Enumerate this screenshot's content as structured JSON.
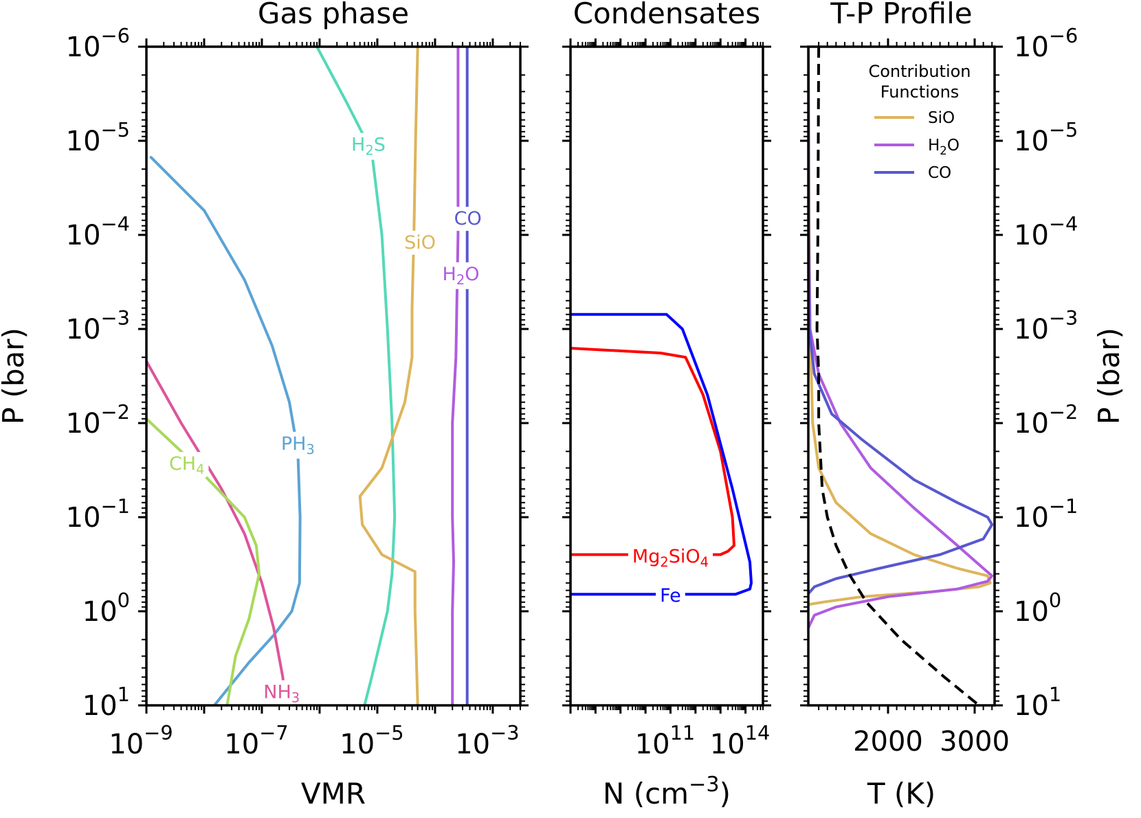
{
  "chart_data": [
    {
      "id": "gas",
      "type": "line",
      "title": "Gas phase",
      "xlabel": "VMR",
      "ylabel": "P (bar)",
      "xscale": "log",
      "yscale": "log",
      "xlim": [
        1e-09,
        0.003
      ],
      "ylim": [
        10,
        1e-06
      ],
      "x_ticks": [
        {
          "base": "10",
          "exp": "−9",
          "value": 1e-09
        },
        {
          "base": "10",
          "exp": "−7",
          "value": 1e-07
        },
        {
          "base": "10",
          "exp": "−5",
          "value": 1e-05
        },
        {
          "base": "10",
          "exp": "−3",
          "value": 0.001
        }
      ],
      "y_ticks": [
        {
          "base": "10",
          "exp": "−6",
          "value": 1e-06
        },
        {
          "base": "10",
          "exp": "−5",
          "value": 1e-05
        },
        {
          "base": "10",
          "exp": "−4",
          "value": 0.0001
        },
        {
          "base": "10",
          "exp": "−3",
          "value": 0.001
        },
        {
          "base": "10",
          "exp": "−2",
          "value": 0.01
        },
        {
          "base": "10",
          "exp": "−1",
          "value": 0.1
        },
        {
          "base": "10",
          "exp": "0",
          "value": 1
        },
        {
          "base": "10",
          "exp": "1",
          "value": 10
        }
      ],
      "series": [
        {
          "key": "PH3",
          "label": "PH",
          "label_sub": "3",
          "label_tail": "",
          "color": "#5ba3d5",
          "label_at": [
            4.2e-07,
            0.0165
          ],
          "points": [
            [
              1.2e-09,
              1.5e-05
            ],
            [
              1e-08,
              5.5e-05
            ],
            [
              5e-08,
              0.0003
            ],
            [
              1.5e-07,
              0.0015
            ],
            [
              3e-07,
              0.006
            ],
            [
              4.2e-07,
              0.02
            ],
            [
              4.6e-07,
              0.1
            ],
            [
              4.5e-07,
              0.5
            ],
            [
              3.3e-07,
              1.0
            ],
            [
              1.6e-07,
              1.8
            ],
            [
              6e-08,
              3.5
            ],
            [
              1.5e-08,
              10
            ]
          ]
        },
        {
          "key": "NH3",
          "label": "NH",
          "label_sub": "3",
          "label_tail": "",
          "color": "#dd559c",
          "label_at": [
            2.2e-07,
            7.2
          ],
          "points": [
            [
              1e-09,
              0.0022
            ],
            [
              4e-09,
              0.01
            ],
            [
              2e-08,
              0.05
            ],
            [
              5e-08,
              0.15
            ],
            [
              1e-07,
              0.5
            ],
            [
              1.6e-07,
              1.5
            ],
            [
              2.3e-07,
              5
            ],
            [
              2.6e-07,
              10
            ]
          ]
        },
        {
          "key": "CH4",
          "label": "CH",
          "label_sub": "4",
          "label_tail": "",
          "color": "#a8d95a",
          "label_at": [
            5e-09,
            0.027
          ],
          "points": [
            [
              1e-09,
              0.009
            ],
            [
              4e-09,
              0.02
            ],
            [
              1.7e-08,
              0.05
            ],
            [
              5e-08,
              0.1
            ],
            [
              8e-08,
              0.2
            ],
            [
              9e-08,
              0.4
            ],
            [
              6e-08,
              1.2
            ],
            [
              3.5e-08,
              3
            ],
            [
              2.5e-08,
              10
            ]
          ]
        },
        {
          "key": "H2S",
          "label": "H",
          "label_sub": "2",
          "label_tail": "S",
          "color": "#55d9b8",
          "label_at": [
            7e-06,
            1.1e-05
          ],
          "points": [
            [
              9e-07,
              1e-06
            ],
            [
              3e-06,
              4e-06
            ],
            [
              8e-06,
              1.3e-05
            ],
            [
              1.2e-05,
              0.0001
            ],
            [
              1.5e-05,
              0.001
            ],
            [
              1.8e-05,
              0.01
            ],
            [
              2e-05,
              0.1
            ],
            [
              1.8e-05,
              0.4
            ],
            [
              1.5e-05,
              1
            ],
            [
              8e-06,
              5
            ],
            [
              6e-06,
              10
            ]
          ]
        },
        {
          "key": "SiO",
          "label": "SiO",
          "label_sub": "",
          "label_tail": "",
          "color": "#ddb55b",
          "label_at": [
            5.5e-05,
            0.00012
          ],
          "points": [
            [
              5e-05,
              1e-06
            ],
            [
              4.6e-05,
              1e-05
            ],
            [
              4.3e-05,
              0.0001
            ],
            [
              4e-05,
              0.0006
            ],
            [
              4e-05,
              0.002
            ],
            [
              3e-05,
              0.006
            ],
            [
              1.2e-05,
              0.03
            ],
            [
              5e-06,
              0.06
            ],
            [
              5.5e-06,
              0.12
            ],
            [
              1.2e-05,
              0.25
            ],
            [
              4.5e-05,
              0.38
            ],
            [
              4.5e-05,
              1
            ],
            [
              5e-05,
              10
            ]
          ]
        },
        {
          "key": "H2O",
          "label": "H",
          "label_sub": "2",
          "label_tail": "O",
          "color": "#b05ce0",
          "label_at": [
            0.00028,
            0.00026
          ],
          "points": [
            [
              0.00025,
              1e-06
            ],
            [
              0.00025,
              0.0001
            ],
            [
              0.00023,
              0.002
            ],
            [
              0.0002,
              0.01
            ],
            [
              0.0002,
              0.1
            ],
            [
              0.00021,
              0.3
            ],
            [
              0.0002,
              1
            ],
            [
              0.0002,
              10
            ]
          ]
        },
        {
          "key": "CO",
          "label": "CO",
          "label_sub": "",
          "label_tail": "",
          "color": "#5858d0",
          "label_at": [
            0.00037,
            6.7e-05
          ],
          "points": [
            [
              0.00036,
              1e-06
            ],
            [
              0.00036,
              10
            ]
          ]
        }
      ]
    },
    {
      "id": "cond",
      "type": "line",
      "title": "Condensates",
      "xlabel": "N (cm",
      "xlabel_sup": "−3",
      "xlabel_tail": ")",
      "xscale": "log",
      "yscale": "log",
      "xlim": [
        10000000,
        500000000000000
      ],
      "ylim": [
        10,
        1e-06
      ],
      "x_ticks": [
        {
          "base": "10",
          "exp": "11",
          "value": 100000000000
        },
        {
          "base": "10",
          "exp": "14",
          "value": 100000000000000
        }
      ],
      "series": [
        {
          "key": "Mg2SiO4",
          "label": "Mg",
          "label_sub": "2",
          "label_tail": "SiO",
          "label_sub2": "4",
          "color": "#ff0000",
          "label_at": [
            100000000000,
            0.26
          ],
          "points": [
            [
              10000000,
              0.25
            ],
            [
              30000000,
              0.25
            ],
            [
              10000000000000,
              0.25
            ],
            [
              20000000000000,
              0.23
            ],
            [
              35000000000000,
              0.2
            ],
            [
              30000000000000,
              0.1
            ],
            [
              10000000000000,
              0.02
            ],
            [
              2000000000000,
              0.005
            ],
            [
              400000000000,
              0.002
            ],
            [
              40000000000,
              0.0018
            ],
            [
              10000000,
              0.0016
            ]
          ]
        },
        {
          "key": "Fe",
          "label": "Fe",
          "label_sub": "",
          "label_tail": "",
          "color": "#0000ff",
          "label_at": [
            100000000000,
            0.68
          ],
          "points": [
            [
              10000000,
              0.66
            ],
            [
              40000000000000,
              0.66
            ],
            [
              150000000000000,
              0.58
            ],
            [
              170000000000000,
              0.5
            ],
            [
              150000000000000,
              0.3
            ],
            [
              30000000000000,
              0.05
            ],
            [
              3000000000000,
              0.005
            ],
            [
              300000000000,
              0.001
            ],
            [
              70000000000,
              0.0007
            ],
            [
              10000000,
              0.0007
            ]
          ]
        }
      ]
    },
    {
      "id": "tp",
      "type": "line",
      "title": "T-P Profile",
      "xlabel": "T (K)",
      "ylabel": "P (bar)",
      "xscale": "linear",
      "yscale": "log",
      "xlim": [
        1080,
        3230
      ],
      "ylim": [
        10,
        1e-06
      ],
      "x_ticks": [
        {
          "label": "2000",
          "value": 2000
        },
        {
          "label": "3000",
          "value": 3000
        }
      ],
      "tp_profile": {
        "color": "#000000",
        "style": "dashed",
        "points": [
          [
            1200,
            1e-06
          ],
          [
            1190,
            0.0001
          ],
          [
            1180,
            0.001
          ],
          [
            1200,
            0.003
          ],
          [
            1200,
            0.01
          ],
          [
            1240,
            0.05
          ],
          [
            1300,
            0.1
          ],
          [
            1400,
            0.2
          ],
          [
            1550,
            0.4
          ],
          [
            1750,
            0.8
          ],
          [
            2150,
            2
          ],
          [
            2650,
            5
          ],
          [
            3050,
            10
          ]
        ]
      },
      "legend": {
        "title": [
          "Contribution",
          "Functions"
        ],
        "placement": "upper-right",
        "entries": [
          {
            "key": "SiO",
            "label": "SiO",
            "label_sub": "",
            "label_tail": ""
          },
          {
            "key": "H2O",
            "label": "H",
            "label_sub": "2",
            "label_tail": "O"
          },
          {
            "key": "CO",
            "label": "CO",
            "label_sub": "",
            "label_tail": ""
          }
        ]
      },
      "contribution_functions": [
        {
          "key": "SiO",
          "color": "#ddb55b",
          "points": [
            [
              1080,
              1e-06
            ],
            [
              1090,
              0.0001
            ],
            [
              1100,
              0.001
            ],
            [
              1130,
              0.01
            ],
            [
              1200,
              0.03
            ],
            [
              1400,
              0.07
            ],
            [
              1800,
              0.15
            ],
            [
              2300,
              0.25
            ],
            [
              2800,
              0.35
            ],
            [
              3150,
              0.42
            ],
            [
              3180,
              0.5
            ],
            [
              3050,
              0.55
            ],
            [
              2500,
              0.62
            ],
            [
              1700,
              0.7
            ],
            [
              1250,
              0.8
            ],
            [
              1080,
              0.85
            ]
          ]
        },
        {
          "key": "H2O",
          "color": "#b05ce0",
          "points": [
            [
              1080,
              1e-06
            ],
            [
              1085,
              0.0001
            ],
            [
              1100,
              0.001
            ],
            [
              1200,
              0.003
            ],
            [
              1450,
              0.01
            ],
            [
              1800,
              0.03
            ],
            [
              2300,
              0.08
            ],
            [
              2800,
              0.2
            ],
            [
              3100,
              0.35
            ],
            [
              3200,
              0.42
            ],
            [
              3150,
              0.48
            ],
            [
              2800,
              0.58
            ],
            [
              2000,
              0.7
            ],
            [
              1400,
              0.9
            ],
            [
              1150,
              1.1
            ],
            [
              1080,
              1.5
            ]
          ]
        },
        {
          "key": "CO",
          "color": "#5858d0",
          "points": [
            [
              1080,
              1e-06
            ],
            [
              1085,
              0.0001
            ],
            [
              1090,
              0.001
            ],
            [
              1150,
              0.003
            ],
            [
              1350,
              0.008
            ],
            [
              1700,
              0.015
            ],
            [
              2300,
              0.04
            ],
            [
              2800,
              0.07
            ],
            [
              3150,
              0.1
            ],
            [
              3200,
              0.12
            ],
            [
              3100,
              0.17
            ],
            [
              2600,
              0.25
            ],
            [
              1900,
              0.35
            ],
            [
              1400,
              0.45
            ],
            [
              1150,
              0.55
            ],
            [
              1080,
              0.65
            ]
          ]
        }
      ]
    }
  ]
}
